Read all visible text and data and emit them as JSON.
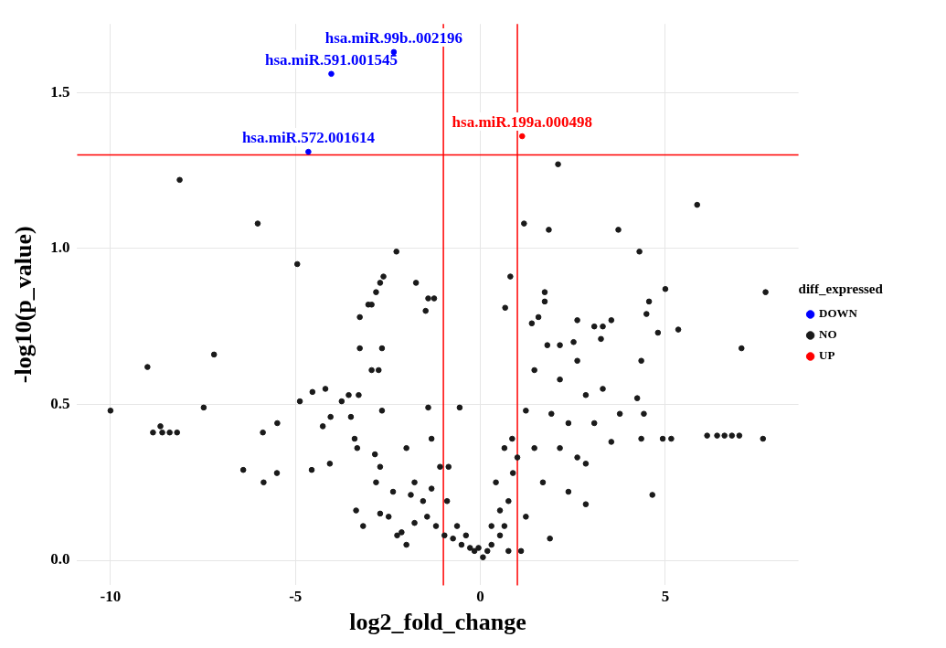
{
  "chart_data": {
    "type": "scatter",
    "xlabel": "log2_fold_change",
    "ylabel": "-log10(p_value)",
    "legend_title": "diff_expressed",
    "legend": "right",
    "grid": true,
    "marker": "circle",
    "xlim": [
      -10.9,
      8.6
    ],
    "ylim": [
      -0.08,
      1.72
    ],
    "xticks": [
      -10,
      -5,
      0,
      5
    ],
    "yticks": [
      {
        "value": 0,
        "label": "0.0"
      },
      0.5,
      {
        "value": 1,
        "label": "1.0"
      },
      1.5
    ],
    "ref_lines": [
      {
        "axis": "x",
        "value": -1,
        "color": "#ff0000"
      },
      {
        "axis": "x",
        "value": 1,
        "color": "#ff0000"
      },
      {
        "axis": "y",
        "value": 1.3,
        "color": "#ff0000"
      }
    ],
    "annotations": [
      {
        "text": "hsa.miR.99b..002196",
        "x": -2.34,
        "y": 1.63
      },
      {
        "text": "hsa.miR.591.001545",
        "x": -4.03,
        "y": 1.56
      },
      {
        "text": "hsa.miR.572.001614",
        "x": -4.65,
        "y": 1.31
      },
      {
        "text": "hsa.miR.199a.000498",
        "x": 1.13,
        "y": 1.36
      }
    ],
    "series": [
      {
        "name": "DOWN",
        "color": "#0000ff",
        "x": [
          -2.34,
          -4.03,
          -4.65
        ],
        "values": [
          1.63,
          1.56,
          1.31
        ]
      },
      {
        "name": "NO",
        "color": "#1a1a1a",
        "x": [
          -10,
          -9,
          -8.85,
          -8.6,
          -8.4,
          -8.2,
          -8.65,
          -8.13,
          -7.48,
          -7.2,
          -6.41,
          -6.02,
          -5.86,
          -5.88,
          -5.5,
          -5.49,
          -4.95,
          -4.88,
          -4.56,
          -4.54,
          -4.19,
          -4.26,
          -4.07,
          -4.05,
          -3.75,
          -3.56,
          -3.5,
          -3.29,
          -3.4,
          -3.33,
          -3.26,
          -3.26,
          -3.03,
          -2.94,
          -2.82,
          -2.71,
          -2.62,
          -2.94,
          -2.75,
          -2.66,
          -2.66,
          -2.85,
          -2.71,
          -2.82,
          -3.36,
          -3.17,
          -2.27,
          -2,
          -1.88,
          -1.74,
          -1.41,
          -1.48,
          -1.25,
          -1.41,
          -1.78,
          -2.13,
          -2.48,
          -1.32,
          -0.56,
          1.18,
          2.1,
          0.81,
          0.67,
          1.85,
          1.74,
          1.74,
          3.73,
          4.3,
          5.86,
          5,
          4.56,
          4.49,
          4.8,
          5.35,
          7.71,
          7.06,
          6.13,
          6.4,
          6.6,
          6.8,
          7.0,
          7.64,
          4.65,
          5.16,
          4.93,
          4.35,
          4.35,
          4.24,
          4.42,
          3.54,
          2.85,
          3.54,
          3.31,
          3.08,
          3.26,
          2.52,
          2.62,
          2.15,
          1.57,
          1.39,
          1.46,
          1.81,
          2.15,
          2.62,
          2.85,
          3.31,
          1.23,
          1.92,
          2.38,
          3.08,
          3.77,
          1,
          1.46,
          2.15,
          2.62,
          1.69,
          2.38,
          2.85,
          1.88,
          1.23,
          0.76,
          0.53,
          0.3,
          0.65,
          0.42,
          0.86,
          -0.16,
          -0.28,
          -0.51,
          -0.74,
          -0.97,
          -1.2,
          -1.44,
          -1.55,
          -1.78,
          -1.09,
          -0.9,
          -0.63,
          0.07,
          0.19,
          -0.05,
          -0.39,
          0.3,
          0.53,
          0.65,
          0.88,
          0.76,
          1.1,
          -0.86,
          -2.25,
          -2,
          -2.71,
          -2.36,
          -1.32
        ],
        "values": [
          0.48,
          0.62,
          0.41,
          0.41,
          0.41,
          0.41,
          0.43,
          1.22,
          0.49,
          0.66,
          0.29,
          1.08,
          0.25,
          0.41,
          0.28,
          0.44,
          0.95,
          0.51,
          0.29,
          0.54,
          0.55,
          0.43,
          0.31,
          0.46,
          0.51,
          0.53,
          0.46,
          0.53,
          0.39,
          0.36,
          0.78,
          0.68,
          0.82,
          0.82,
          0.86,
          0.89,
          0.91,
          0.61,
          0.61,
          0.68,
          0.48,
          0.34,
          0.3,
          0.25,
          0.16,
          0.11,
          0.99,
          0.36,
          0.21,
          0.89,
          0.84,
          0.8,
          0.84,
          0.49,
          0.12,
          0.09,
          0.14,
          0.23,
          0.49,
          1.08,
          1.27,
          0.91,
          0.81,
          1.06,
          0.86,
          0.83,
          1.06,
          0.99,
          1.14,
          0.87,
          0.83,
          0.79,
          0.73,
          0.74,
          0.86,
          0.68,
          0.4,
          0.4,
          0.4,
          0.4,
          0.4,
          0.39,
          0.21,
          0.39,
          0.39,
          0.39,
          0.64,
          0.52,
          0.47,
          0.38,
          0.31,
          0.77,
          0.75,
          0.75,
          0.71,
          0.7,
          0.77,
          0.69,
          0.78,
          0.76,
          0.61,
          0.69,
          0.58,
          0.64,
          0.53,
          0.55,
          0.48,
          0.47,
          0.44,
          0.44,
          0.47,
          0.33,
          0.36,
          0.36,
          0.33,
          0.25,
          0.22,
          0.18,
          0.07,
          0.14,
          0.19,
          0.08,
          0.05,
          0.36,
          0.25,
          0.39,
          0.03,
          0.04,
          0.05,
          0.07,
          0.08,
          0.11,
          0.14,
          0.19,
          0.25,
          0.3,
          0.19,
          0.11,
          0.01,
          0.03,
          0.04,
          0.08,
          0.11,
          0.16,
          0.11,
          0.28,
          0.03,
          0.03,
          0.3,
          0.08,
          0.05,
          0.15,
          0.22,
          0.39
        ]
      },
      {
        "name": "UP",
        "color": "#ff0000",
        "x": [
          1.13
        ],
        "values": [
          1.36
        ]
      }
    ]
  }
}
